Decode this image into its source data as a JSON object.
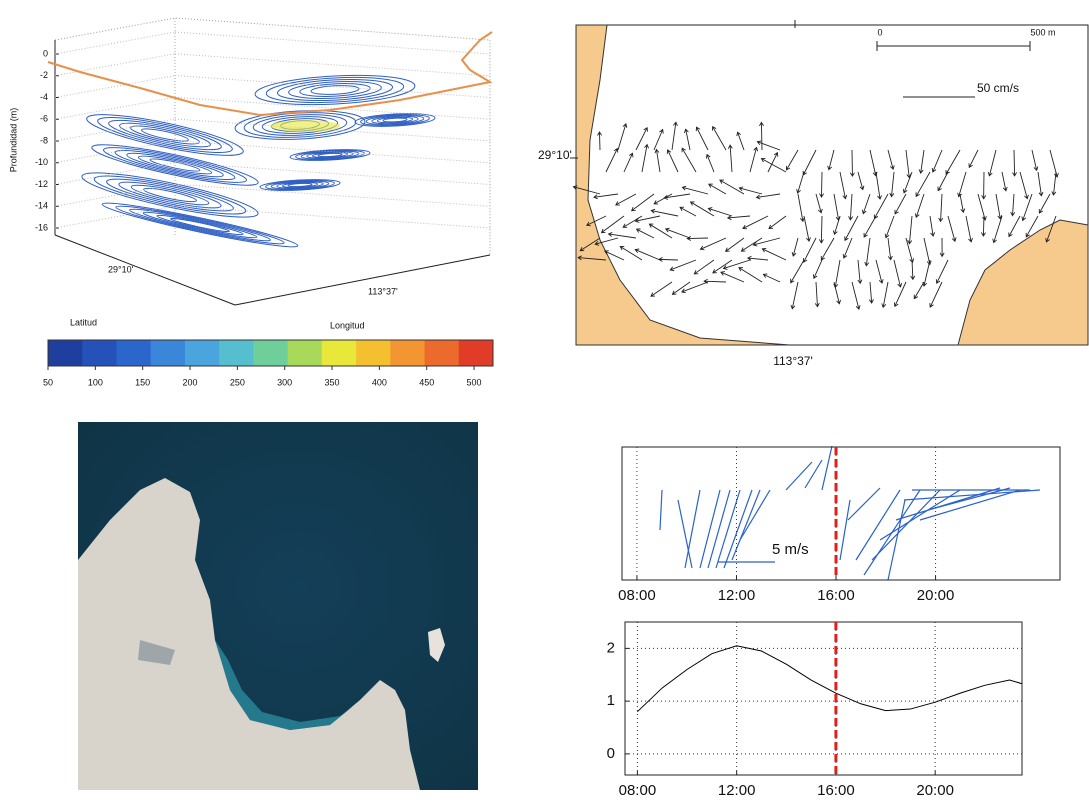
{
  "bathymetry": {
    "z_label": "Profundidad (m)",
    "zlim": [
      -16,
      0
    ],
    "zticks": [
      0,
      -2,
      -4,
      -6,
      -8,
      -10,
      -12,
      -14,
      -16
    ],
    "lat_label": "Latitud",
    "lat_tick": "29°10'",
    "lon_label": "Longitud",
    "lon_tick": "113°37'",
    "contour_color": "#2f5fc4",
    "coast_color": "#e8904a",
    "colorbar": {
      "clim": [
        50,
        520
      ],
      "ticks": [
        50,
        100,
        150,
        200,
        250,
        300,
        350,
        400,
        450,
        500
      ],
      "colors": [
        "#1f3f9e",
        "#2452b8",
        "#2a66cc",
        "#3a86d8",
        "#4aa4de",
        "#55bfcf",
        "#6fcf9a",
        "#a8d95a",
        "#e8e83a",
        "#f5c030",
        "#f39530",
        "#ec6a2c",
        "#e03c28"
      ]
    }
  },
  "currents": {
    "lat_tick": "29°10'",
    "lon_tick": "113°37'",
    "scale_start": "0",
    "scale_end": "500 m",
    "vector_scale": "50 cm/s",
    "land_color": "#f6c98c"
  },
  "chart_data": [
    {
      "type": "stick",
      "xlim": [
        7.4,
        25
      ],
      "xticks": [
        {
          "value": 8,
          "label": "08:00"
        },
        {
          "value": 12,
          "label": "12:00"
        },
        {
          "value": 16,
          "label": "16:00"
        },
        {
          "value": 20,
          "label": "20:00"
        }
      ],
      "grid": true,
      "color": "#2a62c9",
      "scale_label": "5 m/s",
      "marker_x": 16,
      "marker_color": "#e0201b"
    },
    {
      "type": "line",
      "x": [
        8,
        9,
        10,
        11,
        12,
        13,
        14,
        15,
        16,
        17,
        18,
        19,
        20,
        21,
        22,
        23,
        23.5
      ],
      "values": [
        0.8,
        1.25,
        1.6,
        1.9,
        2.05,
        1.95,
        1.7,
        1.4,
        1.15,
        0.95,
        0.82,
        0.85,
        0.98,
        1.15,
        1.3,
        1.4,
        1.33
      ],
      "color": "#000000",
      "xlim": [
        7.5,
        23.5
      ],
      "ylim": [
        -0.4,
        2.5
      ],
      "xticks": [
        {
          "value": 8,
          "label": "08:00"
        },
        {
          "value": 12,
          "label": "12:00"
        },
        {
          "value": 16,
          "label": "16:00"
        },
        {
          "value": 20,
          "label": "20:00"
        }
      ],
      "yticks": [
        0,
        1,
        2
      ],
      "grid": true,
      "marker_x": 16,
      "marker_color": "#e0201b"
    }
  ]
}
